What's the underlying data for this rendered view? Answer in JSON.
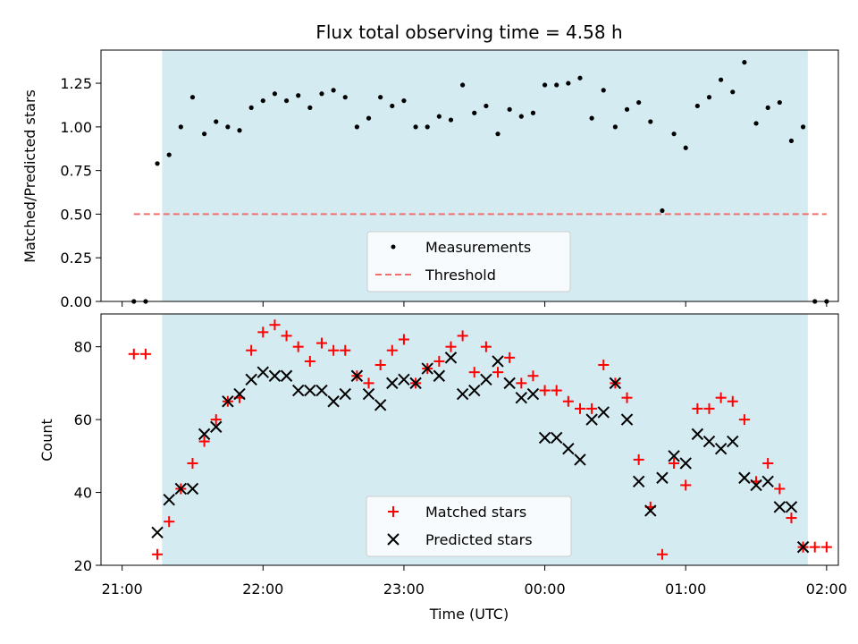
{
  "chart_data": [
    {
      "type": "scatter",
      "title": "Flux total observing time = 4.58 h",
      "xlabel": "",
      "ylabel": "Matched/Predicted stars",
      "ylim": [
        0,
        1.44
      ],
      "yticks": [
        "0.00",
        "0.25",
        "0.50",
        "0.75",
        "1.00",
        "1.25"
      ],
      "legend": "lower-center",
      "shaded_region": {
        "start": "21:17",
        "end": "01:52",
        "color": "#d4ebf2"
      },
      "threshold": {
        "name": "Threshold",
        "value": 0.5,
        "color": "#f07070"
      },
      "series": [
        {
          "name": "Measurements",
          "color": "#000000",
          "x": [
            "21:05",
            "21:10",
            "21:15",
            "21:20",
            "21:25",
            "21:30",
            "21:35",
            "21:40",
            "21:45",
            "21:50",
            "21:55",
            "22:00",
            "22:05",
            "22:10",
            "22:15",
            "22:20",
            "22:25",
            "22:30",
            "22:35",
            "22:40",
            "22:45",
            "22:50",
            "22:55",
            "23:00",
            "23:05",
            "23:10",
            "23:15",
            "23:20",
            "23:25",
            "23:30",
            "23:35",
            "23:40",
            "23:45",
            "23:50",
            "23:55",
            "00:00",
            "00:05",
            "00:10",
            "00:15",
            "00:20",
            "00:25",
            "00:30",
            "00:35",
            "00:40",
            "00:45",
            "00:50",
            "00:55",
            "01:00",
            "01:05",
            "01:10",
            "01:15",
            "01:20",
            "01:25",
            "01:30",
            "01:35",
            "01:40",
            "01:45",
            "01:50",
            "01:55",
            "02:00"
          ],
          "y": [
            0,
            0,
            0.79,
            0.84,
            1.0,
            1.17,
            0.96,
            1.03,
            1.0,
            0.98,
            1.11,
            1.15,
            1.19,
            1.15,
            1.18,
            1.11,
            1.19,
            1.21,
            1.17,
            1.0,
            1.05,
            1.17,
            1.12,
            1.15,
            1.0,
            1.0,
            1.06,
            1.04,
            1.24,
            1.08,
            1.12,
            0.96,
            1.1,
            1.06,
            1.08,
            1.24,
            1.24,
            1.25,
            1.28,
            1.05,
            1.21,
            1.0,
            1.1,
            1.14,
            1.03,
            0.52,
            0.96,
            0.88,
            1.12,
            1.17,
            1.27,
            1.2,
            1.37,
            1.02,
            1.11,
            1.14,
            0.92,
            1.0,
            0,
            0
          ]
        }
      ]
    },
    {
      "type": "scatter",
      "title": "",
      "xlabel": "Time (UTC)",
      "ylabel": "Count",
      "ylim": [
        20,
        89
      ],
      "yticks": [
        "20",
        "40",
        "60",
        "80"
      ],
      "xticks": [
        "21:00",
        "22:00",
        "23:00",
        "00:00",
        "01:00",
        "02:00"
      ],
      "legend": "lower-center",
      "shaded_region": {
        "start": "21:17",
        "end": "01:52",
        "color": "#d4ebf2"
      },
      "series": [
        {
          "name": "Matched stars",
          "color": "#ff0000",
          "marker": "plus",
          "x": [
            "21:05",
            "21:10",
            "21:15",
            "21:20",
            "21:25",
            "21:30",
            "21:35",
            "21:40",
            "21:45",
            "21:50",
            "21:55",
            "22:00",
            "22:05",
            "22:10",
            "22:15",
            "22:20",
            "22:25",
            "22:30",
            "22:35",
            "22:40",
            "22:45",
            "22:50",
            "22:55",
            "23:00",
            "23:05",
            "23:10",
            "23:15",
            "23:20",
            "23:25",
            "23:30",
            "23:35",
            "23:40",
            "23:45",
            "23:50",
            "23:55",
            "00:00",
            "00:05",
            "00:10",
            "00:15",
            "00:20",
            "00:25",
            "00:30",
            "00:35",
            "00:40",
            "00:45",
            "00:50",
            "00:55",
            "01:00",
            "01:05",
            "01:10",
            "01:15",
            "01:20",
            "01:25",
            "01:30",
            "01:35",
            "01:40",
            "01:45",
            "01:50",
            "01:55",
            "02:00"
          ],
          "y": [
            78,
            78,
            23,
            32,
            41,
            48,
            54,
            60,
            65,
            66,
            79,
            84,
            86,
            83,
            80,
            76,
            81,
            79,
            79,
            72,
            70,
            75,
            79,
            82,
            70,
            74,
            76,
            80,
            83,
            73,
            80,
            73,
            77,
            70,
            72,
            68,
            68,
            65,
            63,
            63,
            75,
            70,
            66,
            49,
            36,
            23,
            48,
            42,
            63,
            63,
            66,
            65,
            60,
            43,
            48,
            41,
            33,
            25,
            25,
            25
          ]
        },
        {
          "name": "Predicted stars",
          "color": "#000000",
          "marker": "x",
          "x": [
            "21:15",
            "21:20",
            "21:25",
            "21:30",
            "21:35",
            "21:40",
            "21:45",
            "21:50",
            "21:55",
            "22:00",
            "22:05",
            "22:10",
            "22:15",
            "22:20",
            "22:25",
            "22:30",
            "22:35",
            "22:40",
            "22:45",
            "22:50",
            "22:55",
            "23:00",
            "23:05",
            "23:10",
            "23:15",
            "23:20",
            "23:25",
            "23:30",
            "23:35",
            "23:40",
            "23:45",
            "23:50",
            "23:55",
            "00:00",
            "00:05",
            "00:10",
            "00:15",
            "00:20",
            "00:25",
            "00:30",
            "00:35",
            "00:40",
            "00:45",
            "00:50",
            "00:55",
            "01:00",
            "01:05",
            "01:10",
            "01:15",
            "01:20",
            "01:25",
            "01:30",
            "01:35",
            "01:40",
            "01:45",
            "01:50"
          ],
          "y": [
            29,
            38,
            41,
            41,
            56,
            58,
            65,
            67,
            71,
            73,
            72,
            72,
            68,
            68,
            68,
            65,
            67,
            72,
            67,
            64,
            70,
            71,
            70,
            74,
            72,
            77,
            67,
            68,
            71,
            76,
            70,
            66,
            67,
            55,
            55,
            52,
            49,
            60,
            62,
            70,
            60,
            43,
            35,
            44,
            50,
            48,
            56,
            54,
            52,
            54,
            44,
            42,
            43,
            36,
            36,
            25
          ]
        }
      ]
    }
  ]
}
